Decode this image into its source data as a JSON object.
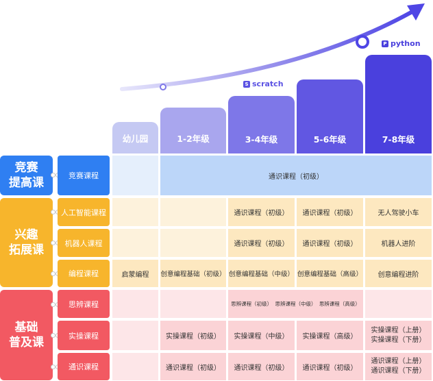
{
  "brands": {
    "scratch": "scratch",
    "python": "python"
  },
  "columns": [
    "幼儿园",
    "1-2年级",
    "3-4年级",
    "5-6年级",
    "7-8年级"
  ],
  "categories": [
    {
      "label_line1": "竞赛",
      "label_line2": "提高课",
      "color": "#2f7ff2"
    },
    {
      "label_line1": "兴趣",
      "label_line2": "拓展课",
      "color": "#f7b52c"
    },
    {
      "label_line1": "基础",
      "label_line2": "普及课",
      "color": "#f25962"
    }
  ],
  "rows": {
    "competition": {
      "label": "竞赛课程",
      "span_text": "通识课程（初级）"
    },
    "ai": {
      "label": "人工智能课程",
      "cells": [
        "",
        "",
        "通识课程（初级）",
        "通识课程（初级）",
        "无人驾驶小车"
      ]
    },
    "robot": {
      "label": "机器人课程",
      "cells": [
        "",
        "",
        "通识课程（初级）",
        "通识课程（初级）",
        "机器人进阶"
      ]
    },
    "coding": {
      "label": "编程课程",
      "cells": [
        "启蒙编程",
        "创意编程基础（初级）",
        "创意编程基础（中级）",
        "创意编程基础（高级）",
        "创意编程进阶"
      ]
    },
    "thinking": {
      "label": "思辨课程",
      "span_items": [
        "思辨课程（初级）",
        "思辨课程（中级）",
        "思辨课程（高级）"
      ]
    },
    "practical": {
      "label": "实操课程",
      "cells": [
        "",
        "实操课程（初级）",
        "实操课程（中级）",
        "实操课程（高级）"
      ],
      "last_line1": "实操课程（上册）",
      "last_line2": "实操课程（下册）"
    },
    "general": {
      "label": "通识课程",
      "cells": [
        "",
        "通识课程（初级）",
        "通识课程（初级）",
        "通识课程（初级）"
      ],
      "last_line1": "通识课程（上册）",
      "last_line2": "通识课程（下册）"
    }
  },
  "colors": {
    "arrow": "#4f46e5",
    "col_heads": [
      "#c5c9f3",
      "#a9a6ee",
      "#7e77e8",
      "#6157e2",
      "#4a40dd"
    ],
    "blue_row_bg": "#bcd6f9",
    "blue_row_light": "#e5effc",
    "yellow_bg": "#fdf2dc",
    "yellow_bg_strong": "#fde8c0",
    "pink_bg": "#fde6e8",
    "pink_bg_strong": "#fbd3d6"
  }
}
